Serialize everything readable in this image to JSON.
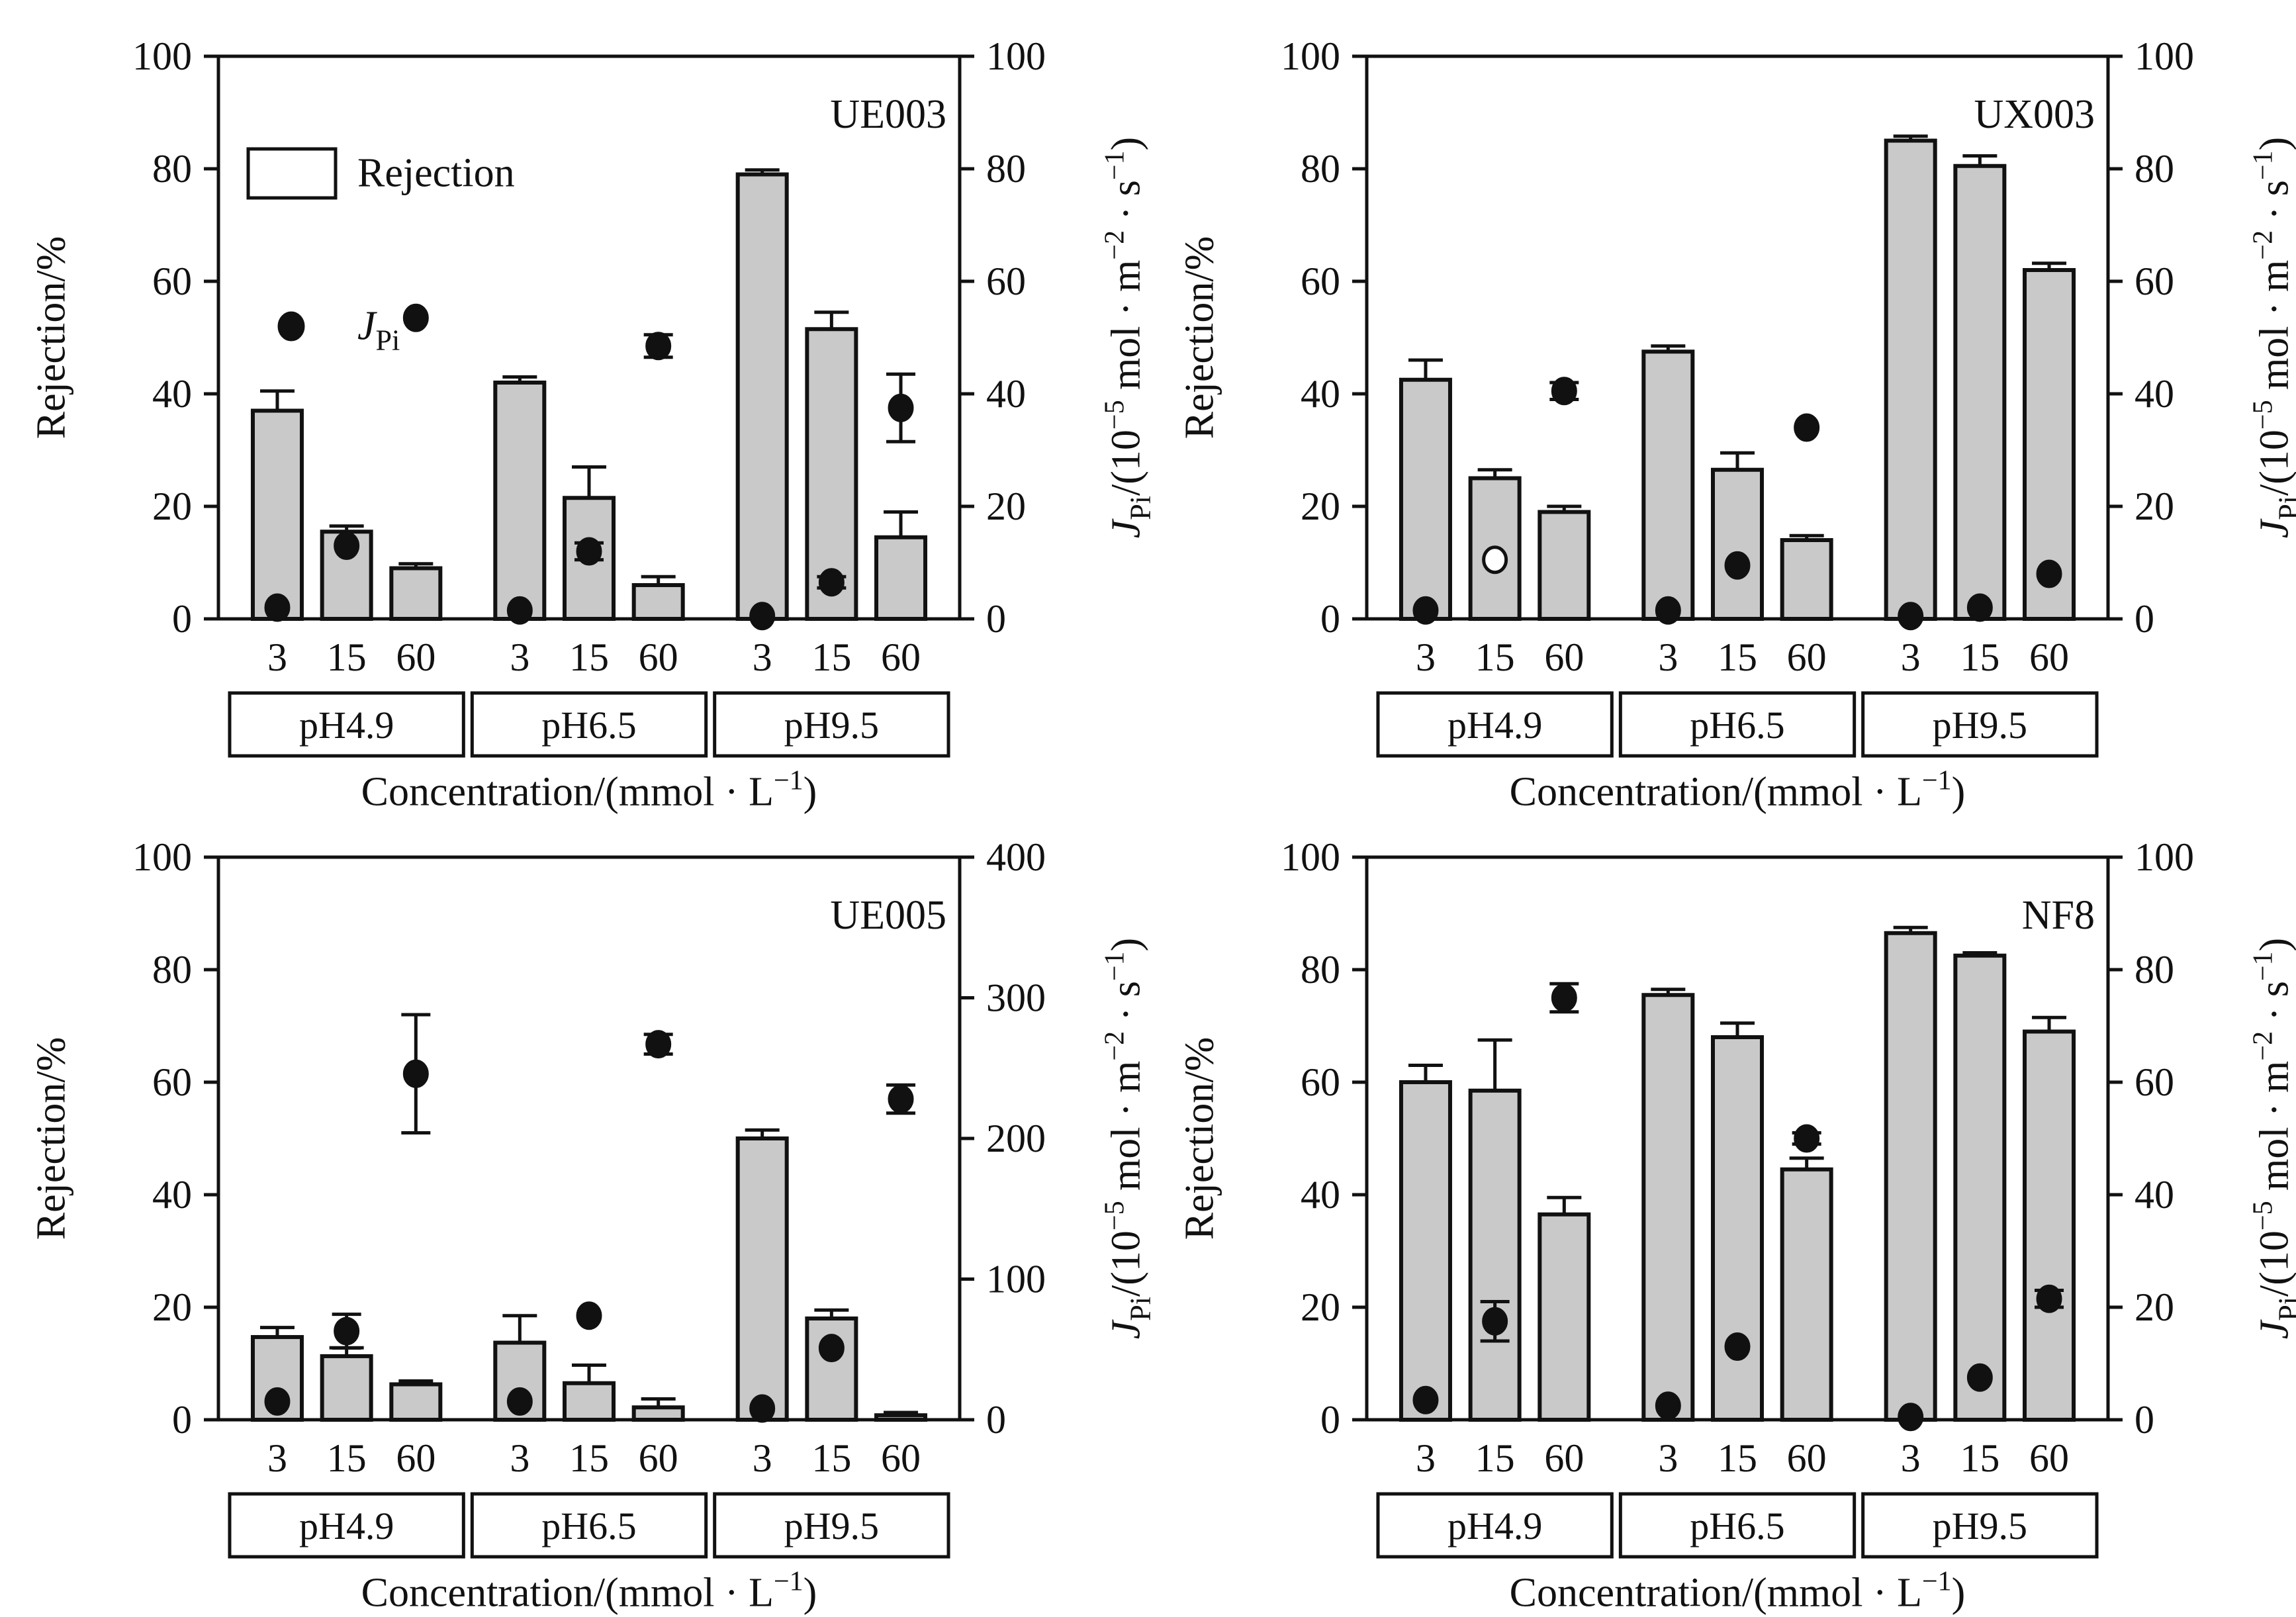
{
  "figure": {
    "background": "#ffffff",
    "bar_fill": "#c9c9c9",
    "line_color": "#111111"
  },
  "axis_labels": {
    "left_title": [
      {
        "t": "Rejection/%",
        "s": "n"
      }
    ],
    "x_title": [
      {
        "t": "Concentration/(mmol · L",
        "s": "n"
      },
      {
        "t": "−1",
        "s": "sup"
      },
      {
        "t": ")",
        "s": "n"
      }
    ],
    "right_title": [
      {
        "t": "J",
        "s": "i"
      },
      {
        "t": "Pi",
        "s": "sub"
      },
      {
        "t": "/(10",
        "s": "n"
      },
      {
        "t": "−5",
        "s": "sup"
      },
      {
        "t": " mol · m",
        "s": "n"
      },
      {
        "t": "−2",
        "s": "sup"
      },
      {
        "t": " · s",
        "s": "n"
      },
      {
        "t": "−1",
        "s": "sup"
      },
      {
        "t": ")",
        "s": "n"
      }
    ]
  },
  "legend": {
    "entries": [
      {
        "symbol": "bar",
        "label": [
          {
            "t": "Rejection",
            "s": "n"
          }
        ]
      },
      {
        "symbol": "point",
        "label": [
          {
            "t": "J",
            "s": "i"
          },
          {
            "t": "Pi",
            "s": "sub"
          }
        ]
      }
    ]
  },
  "chart_data": [
    {
      "type": "bar",
      "title": "UE003",
      "groups": [
        "pH4.9",
        "pH6.5",
        "pH9.5"
      ],
      "categories": [
        "3",
        "15",
        "60",
        "3",
        "15",
        "60",
        "3",
        "15",
        "60"
      ],
      "left_axis": {
        "range": [
          0,
          100
        ],
        "ticks": [
          0,
          20,
          40,
          60,
          80,
          100
        ]
      },
      "right_axis": {
        "max": 100,
        "ticks": [
          0,
          20,
          40,
          60,
          80,
          100
        ]
      },
      "series": [
        {
          "name": "Rejection",
          "type": "bar",
          "values": [
            37,
            15.5,
            9,
            42,
            21.5,
            6,
            79,
            51.5,
            14.5
          ],
          "errors": [
            3.5,
            1,
            0.8,
            1,
            5.5,
            1.5,
            0.8,
            3,
            4.5
          ]
        },
        {
          "name": "JPi",
          "type": "scatter",
          "values": [
            2,
            13,
            53.5,
            1.5,
            12,
            48.5,
            0.5,
            6.5,
            37.5
          ],
          "errors": [
            0,
            0,
            0,
            0,
            1.5,
            2,
            0,
            1,
            6
          ],
          "open": [
            false,
            false,
            false,
            false,
            false,
            false,
            false,
            false,
            false
          ]
        }
      ]
    },
    {
      "type": "bar",
      "title": "UX003",
      "groups": [
        "pH4.9",
        "pH6.5",
        "pH9.5"
      ],
      "categories": [
        "3",
        "15",
        "60",
        "3",
        "15",
        "60",
        "3",
        "15",
        "60"
      ],
      "left_axis": {
        "range": [
          0,
          100
        ],
        "ticks": [
          0,
          20,
          40,
          60,
          80,
          100
        ]
      },
      "right_axis": {
        "max": 100,
        "ticks": [
          0,
          20,
          40,
          60,
          80,
          100
        ]
      },
      "series": [
        {
          "name": "Rejection",
          "type": "bar",
          "values": [
            42.5,
            25,
            19,
            47.5,
            26.5,
            14,
            85,
            80.5,
            62
          ],
          "errors": [
            3.5,
            1.5,
            1,
            1,
            3,
            0.8,
            0.8,
            1.8,
            1.2
          ]
        },
        {
          "name": "JPi",
          "type": "scatter",
          "values": [
            1.5,
            10.5,
            40.5,
            1.5,
            9.5,
            34,
            0.5,
            2,
            8
          ],
          "errors": [
            0,
            0,
            1.5,
            0,
            0,
            0,
            0,
            0,
            0
          ],
          "open": [
            false,
            true,
            false,
            false,
            false,
            false,
            false,
            false,
            false
          ]
        }
      ]
    },
    {
      "type": "bar",
      "title": "UE005",
      "groups": [
        "pH4.9",
        "pH6.5",
        "pH9.5"
      ],
      "categories": [
        "3",
        "15",
        "60",
        "3",
        "15",
        "60",
        "3",
        "15",
        "60"
      ],
      "left_axis": {
        "range": [
          0,
          100
        ],
        "ticks": [
          0,
          20,
          40,
          60,
          80,
          100
        ]
      },
      "right_axis": {
        "max": 400,
        "ticks": [
          0,
          100,
          200,
          300,
          400
        ]
      },
      "series": [
        {
          "name": "Rejection",
          "type": "bar",
          "values": [
            14.7,
            11.3,
            6.3,
            13.7,
            6.5,
            2.2,
            50,
            18,
            0.8
          ],
          "errors": [
            1.7,
            1.5,
            0.6,
            4.8,
            3.2,
            1.5,
            1.5,
            1.5,
            0.5
          ]
        },
        {
          "name": "JPi",
          "type": "scatter",
          "values": [
            13,
            63,
            246,
            13,
            74,
            267,
            8,
            51,
            228
          ],
          "errors": [
            0,
            12,
            42,
            0,
            0,
            7,
            0,
            0,
            10
          ],
          "open": [
            false,
            false,
            false,
            false,
            false,
            false,
            false,
            false,
            false
          ]
        }
      ]
    },
    {
      "type": "bar",
      "title": "NF8",
      "groups": [
        "pH4.9",
        "pH6.5",
        "pH9.5"
      ],
      "categories": [
        "3",
        "15",
        "60",
        "3",
        "15",
        "60",
        "3",
        "15",
        "60"
      ],
      "left_axis": {
        "range": [
          0,
          100
        ],
        "ticks": [
          0,
          20,
          40,
          60,
          80,
          100
        ]
      },
      "right_axis": {
        "max": 100,
        "ticks": [
          0,
          20,
          40,
          60,
          80,
          100
        ]
      },
      "series": [
        {
          "name": "Rejection",
          "type": "bar",
          "values": [
            60,
            58.5,
            36.5,
            75.5,
            68,
            44.5,
            86.5,
            82.5,
            69
          ],
          "errors": [
            3,
            9,
            3,
            1,
            2.5,
            2,
            1,
            0.5,
            2.5
          ]
        },
        {
          "name": "JPi",
          "type": "scatter",
          "values": [
            3.5,
            17.5,
            75,
            2.5,
            13,
            50,
            0.5,
            7.5,
            21.5
          ],
          "errors": [
            0,
            3.5,
            2.5,
            0,
            0,
            1,
            0,
            0,
            1.5
          ],
          "open": [
            false,
            false,
            false,
            false,
            false,
            false,
            false,
            false,
            false
          ]
        }
      ]
    }
  ]
}
